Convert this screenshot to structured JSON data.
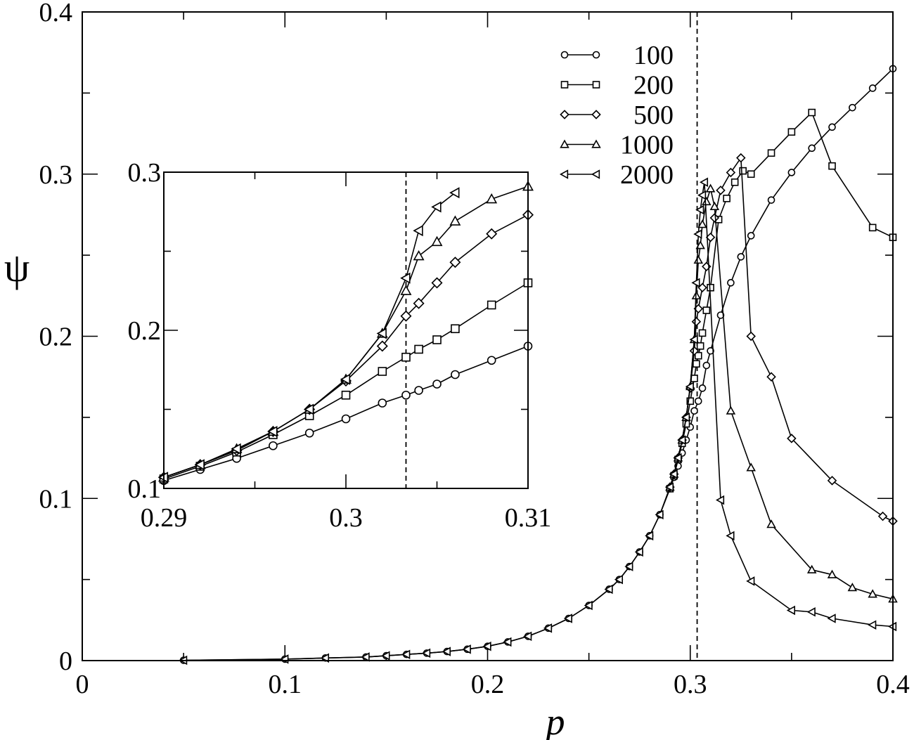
{
  "chart_data": [
    {
      "type": "line",
      "xlabel": "p",
      "ylabel": "ψ",
      "xlim": [
        0,
        0.4
      ],
      "ylim": [
        0,
        0.4
      ],
      "xticks": [
        "0",
        "0.1",
        "0.2",
        "0.3",
        "0.4"
      ],
      "yticks": [
        "0",
        "0.1",
        "0.2",
        "0.3",
        "0.4"
      ],
      "xtick_values": [
        0,
        0.1,
        0.2,
        0.3,
        0.4
      ],
      "ytick_values": [
        0,
        0.1,
        0.2,
        0.3,
        0.4
      ],
      "grid": false,
      "legend_position": "top-right",
      "reference_line_x": 0.3034,
      "series": [
        {
          "name": "100",
          "marker": "circle",
          "x": [
            0.05,
            0.1,
            0.12,
            0.14,
            0.15,
            0.16,
            0.17,
            0.18,
            0.19,
            0.2,
            0.21,
            0.22,
            0.23,
            0.24,
            0.25,
            0.26,
            0.265,
            0.27,
            0.275,
            0.28,
            0.285,
            0.29,
            0.292,
            0.294,
            0.296,
            0.298,
            0.3,
            0.302,
            0.304,
            0.306,
            0.308,
            0.31,
            0.315,
            0.32,
            0.325,
            0.33,
            0.34,
            0.35,
            0.36,
            0.37,
            0.38,
            0.39,
            0.4
          ],
          "y": [
            0.0002,
            0.0009,
            0.0016,
            0.0022,
            0.003,
            0.0038,
            0.0046,
            0.0056,
            0.007,
            0.0088,
            0.0115,
            0.015,
            0.02,
            0.026,
            0.034,
            0.044,
            0.05,
            0.058,
            0.067,
            0.077,
            0.09,
            0.106,
            0.113,
            0.12,
            0.128,
            0.136,
            0.144,
            0.154,
            0.16,
            0.168,
            0.182,
            0.191,
            0.213,
            0.233,
            0.249,
            0.262,
            0.284,
            0.301,
            0.316,
            0.329,
            0.341,
            0.353,
            0.365
          ]
        },
        {
          "name": "200",
          "marker": "square",
          "x": [
            0.29,
            0.292,
            0.294,
            0.296,
            0.298,
            0.3,
            0.302,
            0.303,
            0.304,
            0.305,
            0.306,
            0.308,
            0.31,
            0.314,
            0.318,
            0.322,
            0.326,
            0.33,
            0.34,
            0.35,
            0.36,
            0.37,
            0.39,
            0.4
          ],
          "y": [
            0.106,
            0.114,
            0.124,
            0.134,
            0.146,
            0.16,
            0.174,
            0.183,
            0.188,
            0.194,
            0.202,
            0.216,
            0.23,
            0.272,
            0.285,
            0.295,
            0.302,
            0.3,
            0.313,
            0.326,
            0.338,
            0.305,
            0.267,
            0.261
          ]
        },
        {
          "name": "500",
          "marker": "diamond",
          "x": [
            0.29,
            0.292,
            0.294,
            0.296,
            0.298,
            0.3,
            0.302,
            0.303,
            0.304,
            0.306,
            0.308,
            0.31,
            0.312,
            0.315,
            0.32,
            0.325,
            0.33,
            0.34,
            0.35,
            0.37,
            0.395,
            0.4
          ],
          "y": [
            0.107,
            0.115,
            0.125,
            0.136,
            0.15,
            0.168,
            0.191,
            0.209,
            0.217,
            0.23,
            0.243,
            0.261,
            0.273,
            0.29,
            0.301,
            0.31,
            0.2,
            0.175,
            0.137,
            0.111,
            0.089,
            0.086
          ]
        },
        {
          "name": "1000",
          "marker": "triangle-up",
          "x": [
            0.29,
            0.292,
            0.294,
            0.296,
            0.298,
            0.3,
            0.302,
            0.303,
            0.304,
            0.305,
            0.306,
            0.308,
            0.31,
            0.312,
            0.32,
            0.33,
            0.34,
            0.36,
            0.37,
            0.38,
            0.39,
            0.4
          ],
          "y": [
            0.107,
            0.115,
            0.125,
            0.136,
            0.15,
            0.169,
            0.198,
            0.225,
            0.247,
            0.256,
            0.269,
            0.283,
            0.291,
            0.28,
            0.154,
            0.119,
            0.084,
            0.056,
            0.053,
            0.045,
            0.041,
            0.038
          ]
        },
        {
          "name": "2000",
          "marker": "triangle-left",
          "x": [
            0.05,
            0.1,
            0.12,
            0.14,
            0.15,
            0.16,
            0.17,
            0.18,
            0.19,
            0.2,
            0.21,
            0.22,
            0.23,
            0.24,
            0.25,
            0.26,
            0.265,
            0.27,
            0.275,
            0.28,
            0.285,
            0.29,
            0.292,
            0.294,
            0.296,
            0.298,
            0.3,
            0.302,
            0.303,
            0.304,
            0.305,
            0.306,
            0.307,
            0.315,
            0.32,
            0.33,
            0.35,
            0.36,
            0.37,
            0.39,
            0.4
          ],
          "y": [
            0.0002,
            0.0009,
            0.0016,
            0.0022,
            0.003,
            0.0038,
            0.0046,
            0.0056,
            0.007,
            0.0088,
            0.0115,
            0.015,
            0.02,
            0.026,
            0.034,
            0.044,
            0.05,
            0.058,
            0.067,
            0.077,
            0.09,
            0.107,
            0.115,
            0.125,
            0.136,
            0.15,
            0.169,
            0.198,
            0.233,
            0.263,
            0.278,
            0.287,
            0.295,
            0.099,
            0.077,
            0.049,
            0.031,
            0.03,
            0.026,
            0.022,
            0.021
          ]
        }
      ]
    },
    {
      "type": "line",
      "role": "inset",
      "xlim": [
        0.29,
        0.31
      ],
      "ylim": [
        0.1,
        0.3
      ],
      "xticks": [
        "0.29",
        "0.3",
        "0.31"
      ],
      "yticks": [
        "0.1",
        "0.2",
        "0.3"
      ],
      "xtick_values": [
        0.29,
        0.3,
        0.31
      ],
      "ytick_values": [
        0.1,
        0.2,
        0.3
      ],
      "grid": false,
      "reference_line_x": 0.3033,
      "series": [
        {
          "name": "100",
          "marker": "circle",
          "x": [
            0.29,
            0.292,
            0.294,
            0.296,
            0.298,
            0.3,
            0.302,
            0.3033,
            0.304,
            0.305,
            0.306,
            0.308,
            0.31
          ],
          "y": [
            0.105,
            0.112,
            0.119,
            0.127,
            0.135,
            0.144,
            0.154,
            0.159,
            0.162,
            0.166,
            0.172,
            0.181,
            0.19
          ]
        },
        {
          "name": "200",
          "marker": "square",
          "x": [
            0.29,
            0.292,
            0.294,
            0.296,
            0.298,
            0.3,
            0.302,
            0.3033,
            0.304,
            0.305,
            0.306,
            0.308,
            0.31
          ],
          "y": [
            0.106,
            0.114,
            0.123,
            0.134,
            0.146,
            0.159,
            0.174,
            0.183,
            0.188,
            0.194,
            0.201,
            0.216,
            0.23
          ]
        },
        {
          "name": "500",
          "marker": "diamond",
          "x": [
            0.29,
            0.292,
            0.294,
            0.296,
            0.298,
            0.3,
            0.302,
            0.3033,
            0.304,
            0.305,
            0.306,
            0.308,
            0.31
          ],
          "y": [
            0.107,
            0.115,
            0.124,
            0.136,
            0.15,
            0.168,
            0.19,
            0.209,
            0.217,
            0.23,
            0.243,
            0.261,
            0.273
          ]
        },
        {
          "name": "1000",
          "marker": "triangle-up",
          "x": [
            0.29,
            0.292,
            0.294,
            0.296,
            0.298,
            0.3,
            0.302,
            0.3033,
            0.304,
            0.305,
            0.306,
            0.308,
            0.31
          ],
          "y": [
            0.107,
            0.115,
            0.125,
            0.136,
            0.15,
            0.169,
            0.198,
            0.225,
            0.247,
            0.256,
            0.269,
            0.283,
            0.291
          ]
        },
        {
          "name": "2000",
          "marker": "triangle-left",
          "x": [
            0.29,
            0.292,
            0.294,
            0.296,
            0.298,
            0.3,
            0.302,
            0.3033,
            0.304,
            0.305,
            0.306
          ],
          "y": [
            0.107,
            0.115,
            0.125,
            0.136,
            0.15,
            0.169,
            0.198,
            0.233,
            0.263,
            0.278,
            0.287
          ]
        }
      ]
    }
  ]
}
